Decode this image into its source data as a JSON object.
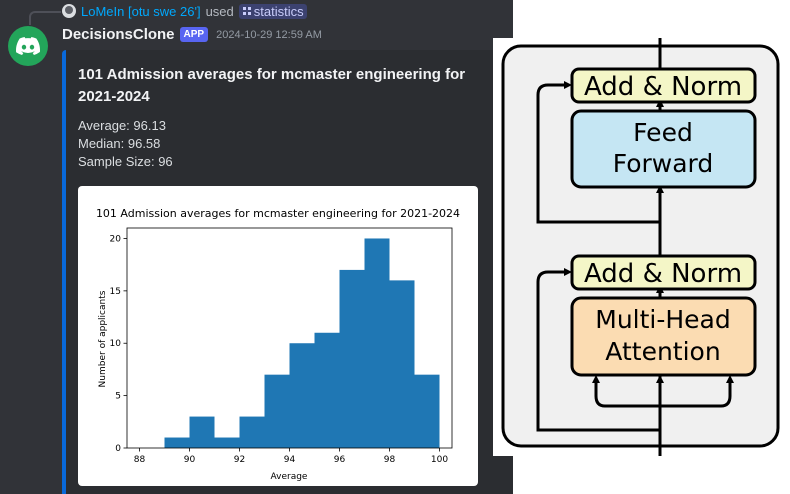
{
  "reply": {
    "user": "LoMeIn [otu swe 26']",
    "used": "used",
    "command": "statistics"
  },
  "message": {
    "username": "DecisionsClone",
    "tag": "APP",
    "timestamp": "2024-10-29 12:59 AM"
  },
  "embed": {
    "title": "101 Admission averages for mcmaster engineering for 2021-2024",
    "average": "Average: 96.13",
    "median": "Median: 96.58",
    "sample_size": "Sample Size: 96",
    "accent_color": "#0969da"
  },
  "chart_data": {
    "type": "bar",
    "title": "101 Admission averages for mcmaster engineering for 2021-2024",
    "xlabel": "Average",
    "ylabel": "Number of applicants",
    "xlim": [
      87.5,
      100.5
    ],
    "ylim": [
      0,
      21
    ],
    "xticks": [
      88,
      90,
      92,
      94,
      96,
      98,
      100
    ],
    "yticks": [
      0,
      5,
      10,
      15,
      20
    ],
    "bin_edges": [
      89,
      90,
      91,
      92,
      93,
      94,
      95,
      96,
      97,
      98,
      99,
      100
    ],
    "counts": [
      1,
      3,
      1,
      3,
      7,
      10,
      11,
      17,
      20,
      16,
      7
    ],
    "bar_color": "#1f77b4"
  },
  "diagram": {
    "top_norm": "Add & Norm",
    "feed_forward_line1": "Feed",
    "feed_forward_line2": "Forward",
    "bottom_norm": "Add & Norm",
    "attention_line1": "Multi-Head",
    "attention_line2": "Attention",
    "norm_color": "#f4f6c7",
    "ff_color": "#c5e6f3",
    "attn_color": "#fbdcb2"
  }
}
